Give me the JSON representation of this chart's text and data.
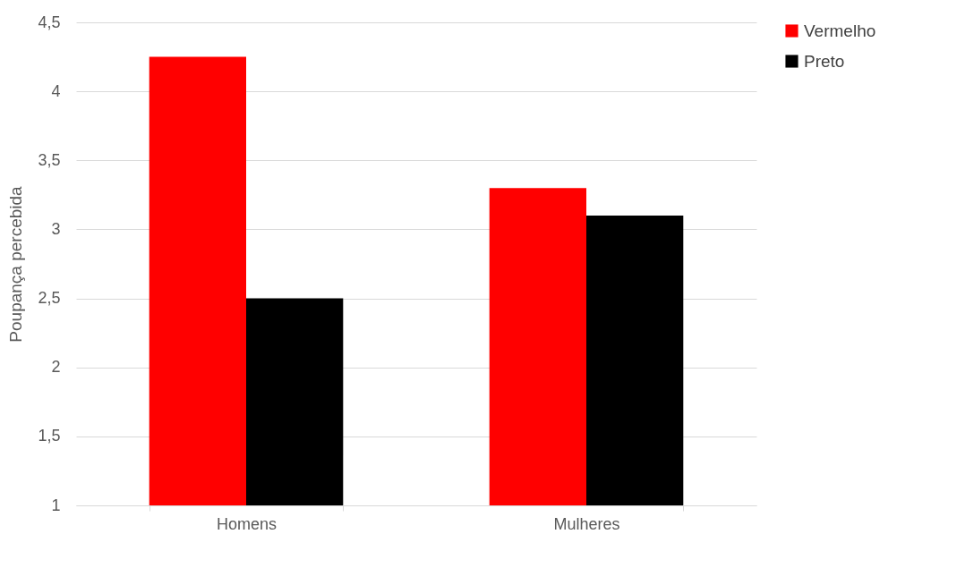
{
  "chart_data": {
    "type": "bar",
    "ylabel": "Poupança percebida",
    "categories": [
      "Homens",
      "Mulheres"
    ],
    "series": [
      {
        "name": "Vermelho",
        "color": "#ff0000",
        "values": [
          4.25,
          3.3
        ]
      },
      {
        "name": "Preto",
        "color": "#000000",
        "values": [
          2.5,
          3.1
        ]
      }
    ],
    "ylim": [
      1,
      4.5
    ],
    "yticks": [
      1,
      {
        "value": 1.5,
        "label": "1,5"
      },
      2,
      {
        "value": 2.5,
        "label": "2,5"
      },
      3,
      {
        "value": 3.5,
        "label": "3,5"
      },
      4,
      {
        "value": 4.5,
        "label": "4,5"
      }
    ],
    "grid": "y",
    "legend": "right"
  }
}
